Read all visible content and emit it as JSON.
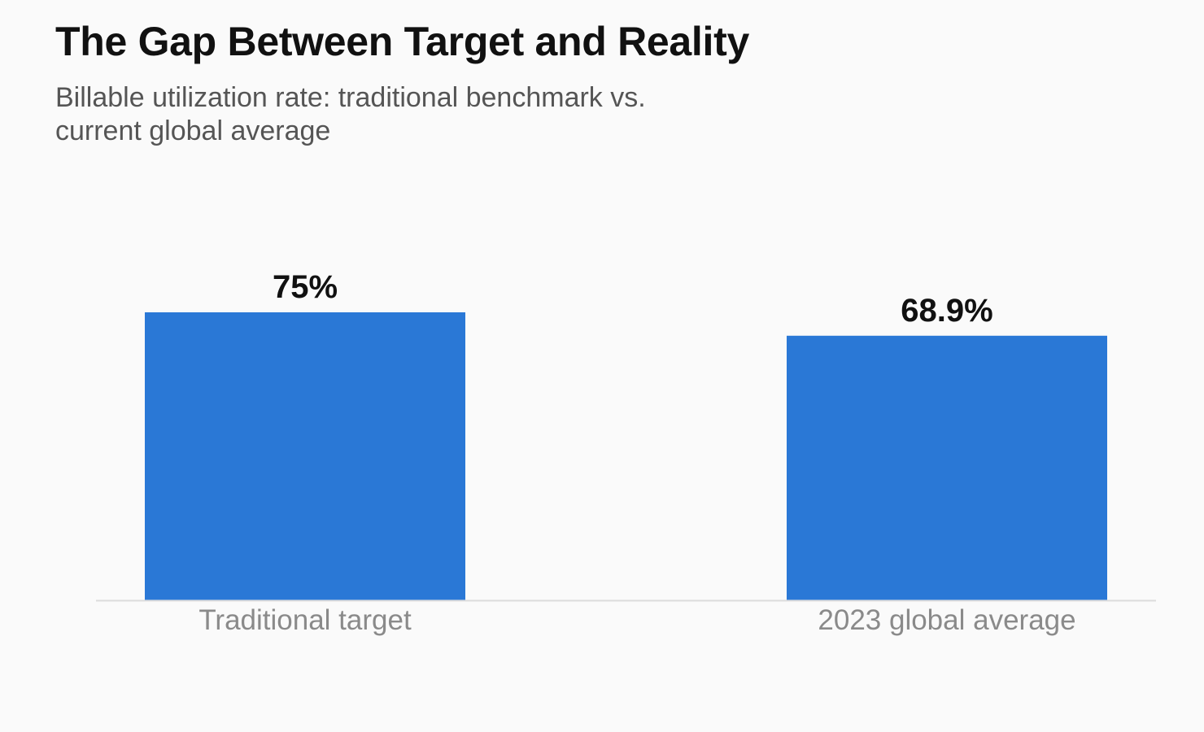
{
  "chart_data": {
    "type": "bar",
    "title": "The Gap Between Target and Reality",
    "subtitle": "Billable utilization rate: traditional benchmark vs. current global average",
    "categories": [
      "Traditional target",
      "2023 global average"
    ],
    "values": [
      75,
      68.9
    ],
    "value_labels": [
      "75%",
      "68.9%"
    ],
    "xlabel": "",
    "ylabel": "",
    "ylim": [
      0,
      75
    ],
    "grid": false,
    "legend": "none",
    "colors": {
      "bar": "#2a78d6",
      "baseline": "#dcdcdc"
    }
  }
}
